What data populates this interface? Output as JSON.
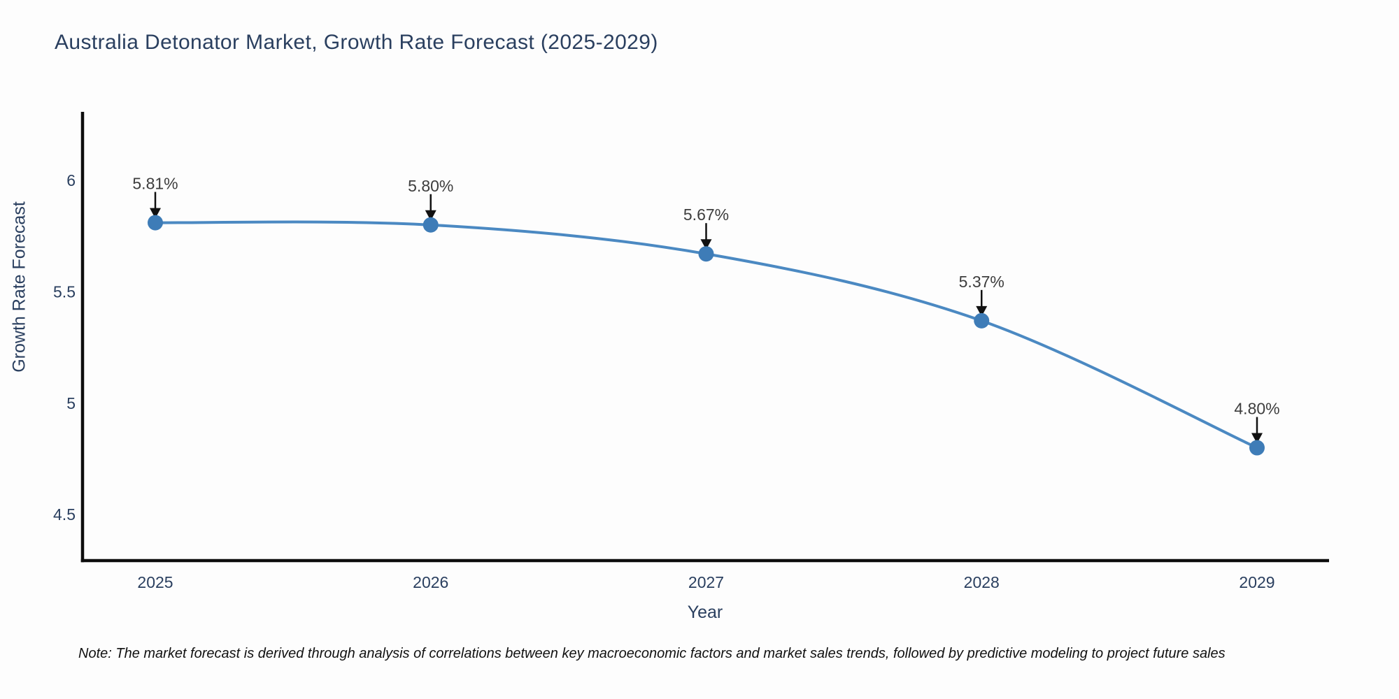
{
  "title": "Australia Detonator Market, Growth Rate Forecast (2025-2029)",
  "note": "Note: The market forecast is derived through analysis of correlations between key macroeconomic factors and market sales trends, followed by predictive modeling to project future sales",
  "chart_data": {
    "type": "line",
    "title": "Australia Detonator Market, Growth Rate Forecast (2025-2029)",
    "xlabel": "Year",
    "ylabel": "Growth Rate Forecast",
    "x": [
      2025,
      2026,
      2027,
      2028,
      2029
    ],
    "xtick_labels": [
      "2025",
      "2026",
      "2027",
      "2028",
      "2029"
    ],
    "series": [
      {
        "name": "Growth Rate Forecast",
        "values": [
          5.81,
          5.8,
          5.67,
          5.37,
          4.8
        ]
      }
    ],
    "point_labels": [
      "5.81%",
      "5.80%",
      "5.67%",
      "5.37%",
      "4.80%"
    ],
    "yticks": [
      4.5,
      5,
      5.5,
      6
    ],
    "ytick_labels": [
      "4.5",
      "5",
      "5.5",
      "6"
    ],
    "ylim": [
      4.3,
      6.31
    ],
    "grid": false,
    "legend_position": "none",
    "line_shape": "spline",
    "colors": {
      "line": "#4b89c2",
      "marker": "#3e7cb7",
      "axis": "#0d0d0d",
      "arrow": "#111111",
      "tick_text": "#2a3f5f",
      "title_text": "#2a3f5f",
      "label_text": "#3d3d3d"
    }
  }
}
